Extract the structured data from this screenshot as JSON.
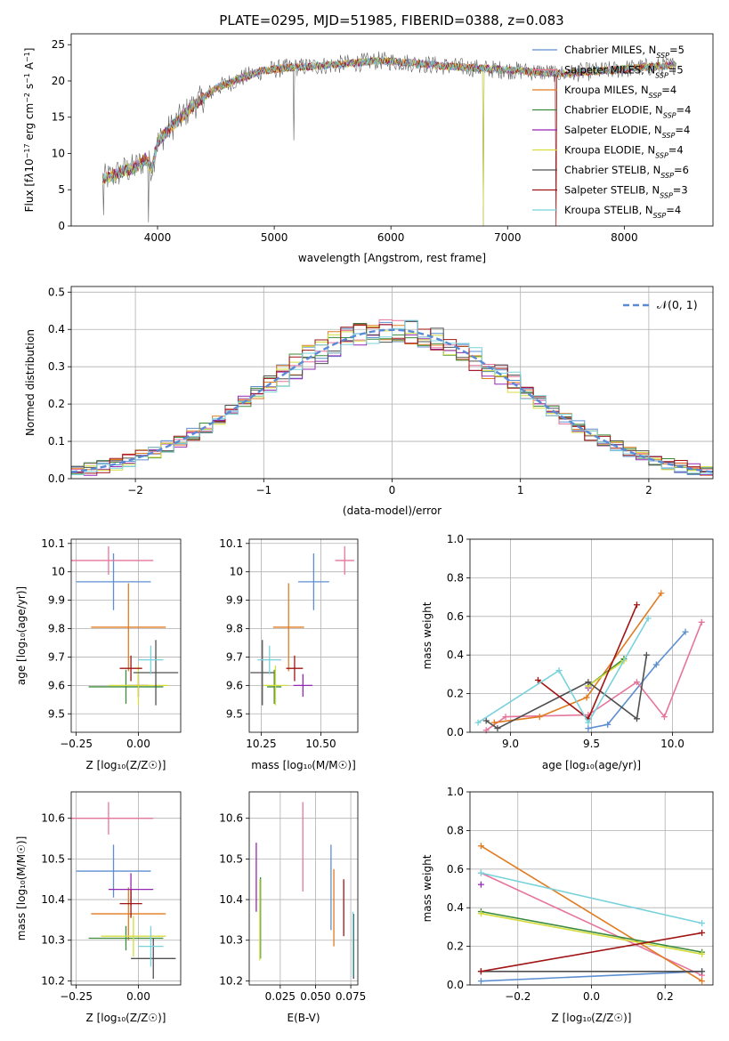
{
  "title": "PLATE=0295, MJD=51985, FIBERID=0388, z=0.083",
  "chart_data": [
    {
      "type": "line",
      "panel": "spectrum",
      "xlabel": "wavelength [Angstrom, rest frame]",
      "ylabel_parts": [
        "Flux [f",
        "λ",
        "10",
        "−17",
        " erg cm",
        "−2",
        " s",
        "−1",
        " A",
        "−1",
        "]"
      ],
      "xlim": [
        3260,
        8760
      ],
      "ylim": [
        0,
        26.5
      ],
      "xticks": [
        4000,
        5000,
        6000,
        7000,
        8000
      ],
      "yticks": [
        0,
        5,
        10,
        15,
        20,
        25
      ],
      "legend_position": "right",
      "series": [
        {
          "name": "Chabrier MILES, N",
          "sub": "SSP",
          "suffix": "=5",
          "color": "#5c8fd1"
        },
        {
          "name": "Salpeter MILES, N",
          "sub": "SSP",
          "suffix": "=5",
          "color": "#e6759c"
        },
        {
          "name": "Kroupa MILES, N",
          "sub": "SSP",
          "suffix": "=4",
          "color": "#e07b20"
        },
        {
          "name": "Chabrier ELODIE, N",
          "sub": "SSP",
          "suffix": "=4",
          "color": "#3c8a3c"
        },
        {
          "name": "Salpeter ELODIE, N",
          "sub": "SSP",
          "suffix": "=4",
          "color": "#9428b4"
        },
        {
          "name": "Kroupa ELODIE, N",
          "sub": "SSP",
          "suffix": "=4",
          "color": "#d4dc3c"
        },
        {
          "name": "Chabrier STELIB, N",
          "sub": "SSP",
          "suffix": "=6",
          "color": "#505050"
        },
        {
          "name": "Salpeter STELIB, N",
          "sub": "SSP",
          "suffix": "=3",
          "color": "#a01414"
        },
        {
          "name": "Kroupa STELIB, N",
          "sub": "SSP",
          "suffix": "=4",
          "color": "#78d2dc"
        }
      ],
      "continuum": {
        "wavelength": [
          3530,
          3600,
          3700,
          3800,
          3900,
          3950,
          4000,
          4050,
          4150,
          4300,
          4500,
          4700,
          4900,
          5100,
          5300,
          5500,
          5700,
          5900,
          6100,
          6300,
          6500,
          6700,
          6900,
          7100,
          7300,
          7500,
          7700,
          7900,
          8100,
          8300,
          8450
        ],
        "flux": [
          6.5,
          6.8,
          7.6,
          8.0,
          9.3,
          8.0,
          11.5,
          12.5,
          14.2,
          16.5,
          19.0,
          20.3,
          21.4,
          21.8,
          22.0,
          22.2,
          22.5,
          22.8,
          22.6,
          22.3,
          22.0,
          21.8,
          21.6,
          21.4,
          21.2,
          21.0,
          21.3,
          21.5,
          21.8,
          22.0,
          22.2
        ]
      },
      "dips": [
        {
          "wavelength": 3535,
          "flux": 1.5
        },
        {
          "wavelength": 3925,
          "flux": 0.5
        },
        {
          "wavelength": 5165,
          "flux": 11.8
        },
        {
          "wavelength": 6790,
          "flux": 0.0
        },
        {
          "wavelength": 7415,
          "flux": 0.0
        }
      ]
    },
    {
      "type": "line",
      "panel": "residual-histogram",
      "xlabel": "(data-model)/error",
      "ylabel": "Normed distribution",
      "xlim": [
        -2.5,
        2.5
      ],
      "ylim": [
        0,
        0.515
      ],
      "xticks": [
        -2,
        -1,
        0,
        1,
        2
      ],
      "xticklabels": [
        "−2",
        "−1",
        "0",
        "1",
        "2"
      ],
      "yticks": [
        0.0,
        0.1,
        0.2,
        0.3,
        0.4,
        0.5
      ],
      "yticklabels": [
        "0.0",
        "0.1",
        "0.2",
        "0.3",
        "0.4",
        "0.5"
      ],
      "grid": true,
      "bin_width": 0.1,
      "legend": "𝒩(0, 1)",
      "legend_position": "top-right",
      "reference_curve": "standard normal, dashed"
    },
    {
      "type": "scatter",
      "panel": "age-vs-Z",
      "xlabel": "Z [log₁₀(Z/Z☉)]",
      "ylabel": "age  [log₁₀(age/yr)]",
      "xlim": [
        -0.27,
        0.17
      ],
      "ylim": [
        9.435,
        10.115
      ],
      "xticks": [
        -0.25,
        0.0
      ],
      "xticklabels": [
        "−0.25",
        "0.00"
      ],
      "yticks": [
        9.5,
        9.6,
        9.7,
        9.8,
        9.9,
        10.0,
        10.1
      ],
      "grid": true,
      "points": [
        {
          "series": "Chabrier MILES",
          "x": -0.1,
          "xerr": 0.15,
          "y": 9.965,
          "yerr": 0.1
        },
        {
          "series": "Salpeter MILES",
          "x": -0.12,
          "xerr": 0.18,
          "y": 10.04,
          "yerr": 0.05
        },
        {
          "series": "Kroupa MILES",
          "x": -0.04,
          "xerr": 0.15,
          "y": 9.805,
          "yerr": 0.155
        },
        {
          "series": "Chabrier ELODIE",
          "x": -0.05,
          "xerr": 0.15,
          "y": 9.595,
          "yerr": 0.06
        },
        {
          "series": "Salpeter ELODIE",
          "x": 0.0,
          "xerr": 0.04,
          "y": 9.6,
          "yerr": 0.04
        },
        {
          "series": "Kroupa ELODIE",
          "x": 0.0,
          "xerr": 0.12,
          "y": 9.6,
          "yerr": 0.07
        },
        {
          "series": "Chabrier STELIB",
          "x": 0.07,
          "xerr": 0.09,
          "y": 9.645,
          "yerr": 0.115
        },
        {
          "series": "Salpeter STELIB",
          "x": -0.03,
          "xerr": 0.045,
          "y": 9.66,
          "yerr": 0.045
        },
        {
          "series": "Kroupa STELIB",
          "x": 0.05,
          "xerr": 0.05,
          "y": 9.69,
          "yerr": 0.05
        }
      ]
    },
    {
      "type": "scatter",
      "panel": "age-vs-mass",
      "xlabel": "mass [log₁₀(M/M☉)]",
      "ylabel": "",
      "xlim": [
        10.2,
        10.655
      ],
      "ylim": [
        9.435,
        10.115
      ],
      "xticks": [
        10.25,
        10.5
      ],
      "xticklabels": [
        "10.25",
        "10.50"
      ],
      "yticks": [
        9.5,
        9.6,
        9.7,
        9.8,
        9.9,
        10.0,
        10.1
      ],
      "grid": true,
      "points": [
        {
          "series": "Chabrier MILES",
          "x": 10.47,
          "xerr": 0.065,
          "y": 9.965,
          "yerr": 0.1
        },
        {
          "series": "Salpeter MILES",
          "x": 10.6,
          "xerr": 0.04,
          "y": 10.04,
          "yerr": 0.05
        },
        {
          "series": "Kroupa MILES",
          "x": 10.365,
          "xerr": 0.065,
          "y": 9.805,
          "yerr": 0.155
        },
        {
          "series": "Chabrier ELODIE",
          "x": 10.305,
          "xerr": 0.03,
          "y": 9.595,
          "yerr": 0.06
        },
        {
          "series": "Salpeter ELODIE",
          "x": 10.425,
          "xerr": 0.04,
          "y": 9.6,
          "yerr": 0.04
        },
        {
          "series": "Kroupa ELODIE",
          "x": 10.31,
          "xerr": 0.05,
          "y": 9.6,
          "yerr": 0.07
        },
        {
          "series": "Chabrier STELIB",
          "x": 10.255,
          "xerr": 0.05,
          "y": 9.645,
          "yerr": 0.115
        },
        {
          "series": "Salpeter STELIB",
          "x": 10.39,
          "xerr": 0.035,
          "y": 9.66,
          "yerr": 0.045
        },
        {
          "series": "Kroupa STELIB",
          "x": 10.285,
          "xerr": 0.05,
          "y": 9.69,
          "yerr": 0.05
        }
      ]
    },
    {
      "type": "line",
      "panel": "weight-vs-age",
      "xlabel": "age  [log₁₀(age/yr)]",
      "ylabel": "mass weight",
      "xlim": [
        8.75,
        10.25
      ],
      "ylim": [
        0,
        1
      ],
      "xticks": [
        9.0,
        9.5,
        10.0
      ],
      "xticklabels": [
        "9.0",
        "9.5",
        "10.0"
      ],
      "yticks": [
        0,
        0.2,
        0.4,
        0.6,
        0.8,
        1.0
      ],
      "yticklabels": [
        "0.0",
        "0.2",
        "0.4",
        "0.6",
        "0.8",
        "1.0"
      ],
      "grid": true,
      "series": [
        {
          "name": "Chabrier MILES",
          "x": [
            9.48,
            9.6,
            9.9,
            10.08
          ],
          "y": [
            0.02,
            0.04,
            0.35,
            0.52
          ]
        },
        {
          "name": "Salpeter MILES",
          "x": [
            8.85,
            8.97,
            9.48,
            9.78,
            9.95,
            10.18
          ],
          "y": [
            0.01,
            0.08,
            0.09,
            0.26,
            0.08,
            0.57
          ]
        },
        {
          "name": "Kroupa MILES",
          "x": [
            8.9,
            9.18,
            9.47,
            9.93
          ],
          "y": [
            0.05,
            0.08,
            0.18,
            0.72
          ]
        },
        {
          "name": "Chabrier ELODIE",
          "x": [
            9.48,
            9.7
          ],
          "y": [
            0.24,
            0.38
          ]
        },
        {
          "name": "Salpeter ELODIE",
          "x": [
            9.48
          ],
          "y": [
            0.23
          ]
        },
        {
          "name": "Kroupa ELODIE",
          "x": [
            9.48,
            9.7
          ],
          "y": [
            0.24,
            0.37
          ]
        },
        {
          "name": "Chabrier STELIB",
          "x": [
            8.85,
            8.92,
            9.48,
            9.78,
            9.84
          ],
          "y": [
            0.06,
            0.02,
            0.26,
            0.07,
            0.4
          ]
        },
        {
          "name": "Salpeter STELIB",
          "x": [
            9.17,
            9.48,
            9.78
          ],
          "y": [
            0.27,
            0.07,
            0.66
          ]
        },
        {
          "name": "Kroupa STELIB",
          "x": [
            8.8,
            9.3,
            9.48,
            9.85
          ],
          "y": [
            0.05,
            0.32,
            0.05,
            0.59
          ]
        }
      ]
    },
    {
      "type": "scatter",
      "panel": "mass-vs-Z",
      "xlabel": "Z [log₁₀(Z/Z☉)]",
      "ylabel": "mass [log₁₀(M/M☉)]",
      "xlim": [
        -0.27,
        0.17
      ],
      "ylim": [
        10.19,
        10.665
      ],
      "xticks": [
        -0.25,
        0.0
      ],
      "xticklabels": [
        "−0.25",
        "0.00"
      ],
      "yticks": [
        10.2,
        10.3,
        10.4,
        10.5,
        10.6
      ],
      "grid": true,
      "points": [
        {
          "series": "Chabrier MILES",
          "x": -0.1,
          "xerr": 0.15,
          "y": 10.47,
          "yerr": 0.065
        },
        {
          "series": "Salpeter MILES",
          "x": -0.12,
          "xerr": 0.18,
          "y": 10.6,
          "yerr": 0.04
        },
        {
          "series": "Kroupa MILES",
          "x": -0.04,
          "xerr": 0.15,
          "y": 10.365,
          "yerr": 0.065
        },
        {
          "series": "Chabrier ELODIE",
          "x": -0.05,
          "xerr": 0.15,
          "y": 10.305,
          "yerr": 0.03
        },
        {
          "series": "Salpeter ELODIE",
          "x": -0.03,
          "xerr": 0.09,
          "y": 10.425,
          "yerr": 0.04
        },
        {
          "series": "Kroupa ELODIE",
          "x": -0.02,
          "xerr": 0.13,
          "y": 10.31,
          "yerr": 0.05
        },
        {
          "series": "Chabrier STELIB",
          "x": 0.06,
          "xerr": 0.09,
          "y": 10.255,
          "yerr": 0.05
        },
        {
          "series": "Salpeter STELIB",
          "x": -0.03,
          "xerr": 0.045,
          "y": 10.39,
          "yerr": 0.035
        },
        {
          "series": "Kroupa STELIB",
          "x": 0.05,
          "xerr": 0.05,
          "y": 10.285,
          "yerr": 0.05
        }
      ]
    },
    {
      "type": "scatter",
      "panel": "mass-vs-ebv",
      "xlabel": "E(B-V)",
      "ylabel": "",
      "xlim": [
        0.003,
        0.08
      ],
      "ylim": [
        10.19,
        10.665
      ],
      "xticks": [
        0.025,
        0.05,
        0.075
      ],
      "xticklabels": [
        "0.025",
        "0.050",
        "0.075"
      ],
      "yticks": [
        10.2,
        10.3,
        10.4,
        10.5,
        10.6
      ],
      "grid": true,
      "points": [
        {
          "series": "Chabrier MILES",
          "x": 0.061,
          "y": 10.43,
          "yerr": 0.105
        },
        {
          "series": "Salpeter MILES",
          "x": 0.041,
          "y": 10.53,
          "yerr": 0.11
        },
        {
          "series": "Kroupa MILES",
          "x": 0.063,
          "y": 10.38,
          "yerr": 0.095
        },
        {
          "series": "Chabrier ELODIE",
          "x": 0.011,
          "y": 10.355,
          "yerr": 0.1
        },
        {
          "series": "Salpeter ELODIE",
          "x": 0.008,
          "y": 10.455,
          "yerr": 0.085
        },
        {
          "series": "Kroupa ELODIE",
          "x": 0.0105,
          "y": 10.35,
          "yerr": 0.1
        },
        {
          "series": "Chabrier STELIB",
          "x": 0.077,
          "y": 10.285,
          "yerr": 0.08
        },
        {
          "series": "Salpeter STELIB",
          "x": 0.07,
          "y": 10.38,
          "yerr": 0.07
        },
        {
          "series": "Kroupa STELIB",
          "x": 0.0765,
          "y": 10.29,
          "yerr": 0.08
        }
      ]
    },
    {
      "type": "line",
      "panel": "weight-vs-Z",
      "xlabel": "Z [log₁₀(Z/Z☉)]",
      "ylabel": "mass weight",
      "xlim": [
        -0.33,
        0.33
      ],
      "ylim": [
        0,
        1
      ],
      "xticks": [
        -0.2,
        0.0,
        0.2
      ],
      "xticklabels": [
        "−0.2",
        "0.0",
        "0.2"
      ],
      "yticks": [
        0,
        0.2,
        0.4,
        0.6,
        0.8,
        1.0
      ],
      "yticklabels": [
        "0.0",
        "0.2",
        "0.4",
        "0.6",
        "0.8",
        "1.0"
      ],
      "grid": true,
      "series": [
        {
          "name": "Chabrier MILES",
          "x": [
            -0.3,
            0.3
          ],
          "y": [
            0.02,
            0.07
          ]
        },
        {
          "name": "Salpeter MILES",
          "x": [
            -0.3,
            0.3
          ],
          "y": [
            0.58,
            0.05
          ]
        },
        {
          "name": "Kroupa MILES",
          "x": [
            -0.3,
            0.3
          ],
          "y": [
            0.72,
            0.02
          ]
        },
        {
          "name": "Chabrier ELODIE",
          "x": [
            -0.3,
            0.3
          ],
          "y": [
            0.38,
            0.17
          ]
        },
        {
          "name": "Salpeter ELODIE",
          "x": [
            -0.3
          ],
          "y": [
            0.52
          ]
        },
        {
          "name": "Kroupa ELODIE",
          "x": [
            -0.3,
            0.3
          ],
          "y": [
            0.37,
            0.16
          ]
        },
        {
          "name": "Chabrier STELIB",
          "x": [
            -0.3,
            0.3
          ],
          "y": [
            0.07,
            0.07
          ]
        },
        {
          "name": "Salpeter STELIB",
          "x": [
            -0.3,
            0.3
          ],
          "y": [
            0.07,
            0.27
          ]
        },
        {
          "name": "Kroupa STELIB",
          "x": [
            -0.3,
            0.3
          ],
          "y": [
            0.58,
            0.32
          ]
        }
      ]
    }
  ]
}
